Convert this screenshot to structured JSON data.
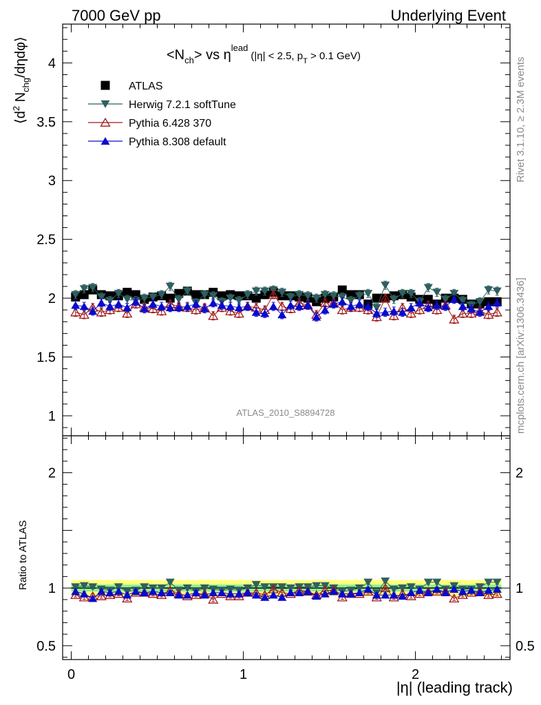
{
  "header": {
    "left": "7000 GeV pp",
    "right": "Underlying Event"
  },
  "title": {
    "main": "<N",
    "main_sub": "ch",
    "main_mid": "> vs η",
    "main_sup": "lead",
    "cut": "(|η| < 2.5, p",
    "cut_sub": "T",
    "cut_end": " > 0.1 GeV)"
  },
  "side_labels": {
    "rivet": "Rivet 3.1.10, ≥ 2.3M events",
    "mcplots": "mcplots.cern.ch [arXiv:1306.3436]"
  },
  "watermark": "ATLAS_2010_S8894728",
  "ylabel_top": {
    "pre": "⟨d",
    "sup": "2",
    "mid": " N",
    "sub": "chg",
    "end": "/dηdφ⟩"
  },
  "ylabel_bottom": "Ratio to ATLAS",
  "xlabel": "|η| (leading track)",
  "legend": [
    {
      "label": "ATLAS",
      "marker": "square",
      "color": "#000000"
    },
    {
      "label": "Herwig 7.2.1 softTune",
      "marker": "triangle-down",
      "color": "#2f5f5f"
    },
    {
      "label": "Pythia 6.428 370",
      "marker": "triangle-up-open",
      "color": "#a01818"
    },
    {
      "label": "Pythia 8.308 default",
      "marker": "triangle-up",
      "color": "#0a0acc"
    }
  ],
  "chart_data": [
    {
      "type": "scatter",
      "panel": "main",
      "xlim": [
        -0.05,
        2.55
      ],
      "ylim": [
        0.83,
        4.33
      ],
      "yticks": [
        "1",
        "1.5",
        "2",
        "2.5",
        "3",
        "3.5",
        "4"
      ],
      "x": [
        0.025,
        0.075,
        0.125,
        0.175,
        0.225,
        0.275,
        0.325,
        0.375,
        0.425,
        0.475,
        0.525,
        0.575,
        0.625,
        0.675,
        0.725,
        0.775,
        0.825,
        0.875,
        0.925,
        0.975,
        1.025,
        1.075,
        1.125,
        1.175,
        1.225,
        1.275,
        1.325,
        1.375,
        1.425,
        1.475,
        1.525,
        1.575,
        1.625,
        1.675,
        1.725,
        1.775,
        1.825,
        1.875,
        1.925,
        1.975,
        2.025,
        2.075,
        2.125,
        2.175,
        2.225,
        2.275,
        2.325,
        2.375,
        2.425,
        2.475
      ],
      "series": [
        {
          "name": "ATLAS",
          "values": [
            2.01,
            2.03,
            2.07,
            2.03,
            2.02,
            2.02,
            2.05,
            2.03,
            1.99,
            2.01,
            2.02,
            2.0,
            2.04,
            2.06,
            2.03,
            2.03,
            2.05,
            2.02,
            2.03,
            2.02,
            2.02,
            2.0,
            2.03,
            2.05,
            2.02,
            2.02,
            2.01,
            2.0,
            1.97,
            2.0,
            2.01,
            2.07,
            2.03,
            2.03,
            1.95,
            2.0,
            2.0,
            2.02,
            2.03,
            2.01,
            1.99,
            1.99,
            1.95,
            2.0,
            2.0,
            1.99,
            1.95,
            1.95,
            1.97,
            1.97
          ]
        },
        {
          "name": "Herwig 7.2.1 softTune",
          "values": [
            2.03,
            2.08,
            2.09,
            2.01,
            1.98,
            2.04,
            1.99,
            1.98,
            2.0,
            2.01,
            2.03,
            2.1,
            1.99,
            2.06,
            1.96,
            2.03,
            2.02,
            1.97,
            2.0,
            1.98,
            2.03,
            2.06,
            2.06,
            2.07,
            2.05,
            2.01,
            2.03,
            2.02,
            2.0,
            2.03,
            2.02,
            2.01,
            1.98,
            2.02,
            2.04,
            1.92,
            2.11,
            1.99,
            2.04,
            2.04,
            1.97,
            2.09,
            2.05,
            1.99,
            2.04,
            1.98,
            1.94,
            1.97,
            2.07,
            2.06
          ]
        },
        {
          "name": "Pythia 6.428 370",
          "values": [
            1.88,
            1.86,
            1.92,
            1.88,
            1.9,
            1.92,
            1.87,
            1.95,
            1.92,
            1.91,
            1.89,
            1.95,
            1.93,
            1.92,
            1.9,
            1.92,
            1.85,
            1.92,
            1.89,
            1.87,
            1.93,
            1.92,
            1.9,
            2.03,
            1.93,
            1.91,
            1.96,
            1.94,
            1.86,
            1.96,
            1.96,
            1.9,
            1.92,
            1.92,
            1.9,
            1.84,
            2.0,
            1.85,
            1.92,
            1.87,
            1.9,
            1.94,
            1.9,
            1.94,
            1.82,
            1.87,
            1.87,
            1.89,
            1.86,
            1.88
          ]
        },
        {
          "name": "Pythia 8.308 default",
          "values": [
            1.94,
            1.93,
            1.89,
            1.96,
            1.93,
            1.95,
            1.92,
            1.97,
            1.91,
            1.95,
            1.93,
            1.92,
            1.92,
            1.93,
            1.95,
            1.91,
            1.96,
            1.94,
            1.93,
            1.92,
            1.93,
            1.88,
            1.87,
            1.93,
            1.86,
            1.94,
            1.93,
            1.94,
            1.84,
            1.9,
            1.95,
            1.97,
            1.93,
            1.95,
            1.93,
            1.87,
            1.88,
            1.89,
            1.88,
            1.92,
            1.96,
            1.92,
            1.94,
            1.93,
            1.99,
            1.93,
            1.91,
            1.88,
            1.93,
            1.96
          ]
        }
      ]
    },
    {
      "type": "scatter",
      "panel": "ratio",
      "xlim": [
        -0.05,
        2.55
      ],
      "ylim": [
        0.38,
        2.32
      ],
      "yticks": [
        "0.5",
        "1",
        "2"
      ],
      "xticks": [
        "0",
        "1",
        "2"
      ],
      "band_inner": 0.03,
      "band_outer": 0.07,
      "x": [
        0.025,
        0.075,
        0.125,
        0.175,
        0.225,
        0.275,
        0.325,
        0.375,
        0.425,
        0.475,
        0.525,
        0.575,
        0.625,
        0.675,
        0.725,
        0.775,
        0.825,
        0.875,
        0.925,
        0.975,
        1.025,
        1.075,
        1.125,
        1.175,
        1.225,
        1.275,
        1.325,
        1.375,
        1.425,
        1.475,
        1.525,
        1.575,
        1.625,
        1.675,
        1.725,
        1.775,
        1.825,
        1.875,
        1.925,
        1.975,
        2.025,
        2.075,
        2.125,
        2.175,
        2.225,
        2.275,
        2.325,
        2.375,
        2.425,
        2.475
      ],
      "series": [
        {
          "name": "Herwig 7.2.1 softTune",
          "values": [
            1.01,
            1.02,
            1.01,
            0.99,
            0.98,
            1.01,
            0.97,
            0.98,
            1.01,
            1.0,
            1.0,
            1.05,
            0.98,
            1.0,
            0.97,
            1.0,
            0.99,
            0.98,
            0.99,
            0.98,
            1.0,
            1.03,
            1.01,
            1.01,
            1.01,
            1.0,
            1.01,
            1.01,
            1.02,
            1.02,
            1.0,
            0.97,
            0.98,
            1.0,
            1.05,
            0.96,
            1.06,
            0.99,
            1.0,
            1.01,
            0.99,
            1.05,
            1.05,
            0.99,
            1.02,
            0.99,
            0.99,
            1.01,
            1.05,
            1.05
          ]
        },
        {
          "name": "Pythia 6.428 370",
          "values": [
            0.94,
            0.92,
            0.93,
            0.93,
            0.94,
            0.95,
            0.91,
            0.96,
            0.96,
            0.95,
            0.94,
            0.98,
            0.95,
            0.93,
            0.94,
            0.95,
            0.9,
            0.95,
            0.93,
            0.93,
            0.96,
            0.96,
            0.94,
            0.99,
            0.96,
            0.95,
            0.98,
            0.97,
            0.94,
            0.98,
            0.98,
            0.92,
            0.95,
            0.95,
            0.97,
            0.92,
            1.0,
            0.92,
            0.95,
            0.93,
            0.95,
            0.97,
            0.97,
            0.97,
            0.91,
            0.94,
            0.96,
            0.97,
            0.94,
            0.95
          ]
        },
        {
          "name": "Pythia 8.308 default",
          "values": [
            0.97,
            0.95,
            0.91,
            0.97,
            0.96,
            0.97,
            0.94,
            0.97,
            0.96,
            0.97,
            0.96,
            0.96,
            0.94,
            0.94,
            0.96,
            0.94,
            0.96,
            0.96,
            0.95,
            0.95,
            0.96,
            0.94,
            0.92,
            0.94,
            0.92,
            0.96,
            0.96,
            0.97,
            0.93,
            0.95,
            0.97,
            0.95,
            0.95,
            0.96,
            0.99,
            0.94,
            0.94,
            0.94,
            0.93,
            0.96,
            0.98,
            0.96,
            0.99,
            0.96,
            0.99,
            0.97,
            0.98,
            0.96,
            0.98,
            0.99
          ]
        }
      ]
    }
  ],
  "colors": {
    "band_inner": "#90ee90",
    "band_outer": "#ffff80",
    "atlas": "#000000",
    "herwig": "#2f5f5f",
    "pythia6": "#a01818",
    "pythia8": "#0a0acc"
  }
}
